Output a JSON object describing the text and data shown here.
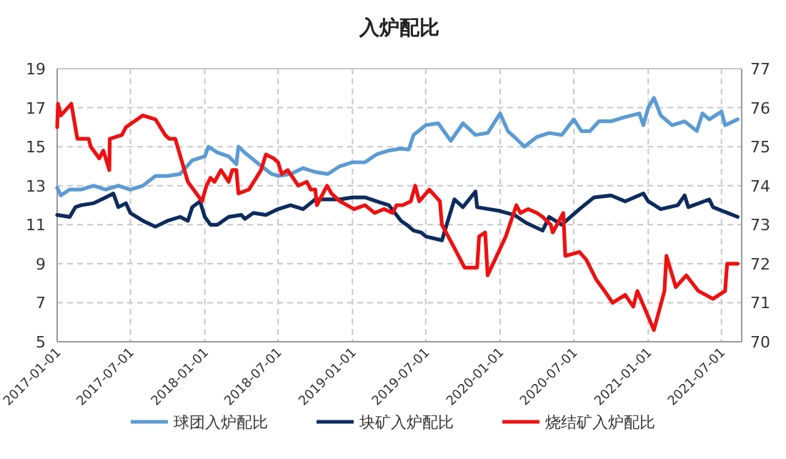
{
  "chart_data": {
    "type": "line",
    "title": "入炉配比",
    "xlim": [
      "2017-01-01",
      "2021-08-20"
    ],
    "xticks": [
      "2017-01-01",
      "2017-07-01",
      "2018-01-01",
      "2018-07-01",
      "2019-01-01",
      "2019-07-01",
      "2020-01-01",
      "2020-07-01",
      "2021-01-01",
      "2021-07-01"
    ],
    "ylim": [
      5,
      19
    ],
    "yticks": [
      5,
      7,
      9,
      11,
      13,
      15,
      17,
      19
    ],
    "y2lim": [
      70,
      77
    ],
    "y2ticks": [
      70,
      71,
      72,
      73,
      74,
      75,
      76,
      77
    ],
    "grid": true,
    "legend": "bottom",
    "line_style": "solid",
    "marker": "none",
    "series": [
      {
        "name": "球团入炉配比",
        "color": "#5b9bd5",
        "x": [
          "2017-01-01",
          "2017-01-10",
          "2017-02-01",
          "2017-03-01",
          "2017-04-01",
          "2017-05-01",
          "2017-06-01",
          "2017-07-01",
          "2017-08-01",
          "2017-09-01",
          "2017-10-01",
          "2017-11-01",
          "2017-12-01",
          "2018-01-01",
          "2018-01-10",
          "2018-02-01",
          "2018-03-01",
          "2018-03-20",
          "2018-03-25",
          "2018-04-15",
          "2018-05-15",
          "2018-06-15",
          "2018-07-01",
          "2018-08-01",
          "2018-09-01",
          "2018-10-01",
          "2018-11-01",
          "2018-12-01",
          "2019-01-01",
          "2019-02-01",
          "2019-03-01",
          "2019-04-01",
          "2019-05-01",
          "2019-05-20",
          "2019-06-01",
          "2019-07-01",
          "2019-08-01",
          "2019-09-01",
          "2019-10-01",
          "2019-11-01",
          "2019-12-01",
          "2020-01-01",
          "2020-01-20",
          "2020-02-05",
          "2020-03-01",
          "2020-04-01",
          "2020-05-01",
          "2020-06-01",
          "2020-07-01",
          "2020-07-20",
          "2020-08-10",
          "2020-09-01",
          "2020-10-01",
          "2020-11-01",
          "2020-12-10",
          "2020-12-20",
          "2021-01-01",
          "2021-01-15",
          "2021-02-01",
          "2021-03-01",
          "2021-04-01",
          "2021-05-01",
          "2021-05-15",
          "2021-06-01",
          "2021-07-01",
          "2021-07-10",
          "2021-08-10"
        ],
        "values": [
          12.9,
          12.5,
          12.8,
          12.8,
          13.0,
          12.8,
          13.0,
          12.8,
          13.0,
          13.5,
          13.5,
          13.6,
          14.3,
          14.5,
          15.0,
          14.7,
          14.5,
          14.1,
          15.0,
          14.6,
          14.1,
          13.6,
          13.5,
          13.6,
          13.9,
          13.7,
          13.6,
          14.0,
          14.2,
          14.2,
          14.6,
          14.8,
          14.9,
          14.85,
          15.6,
          16.1,
          16.2,
          15.3,
          16.2,
          15.6,
          15.7,
          16.7,
          15.8,
          15.5,
          15.0,
          15.5,
          15.7,
          15.6,
          16.4,
          15.8,
          15.8,
          16.3,
          16.3,
          16.5,
          16.7,
          16.1,
          17.0,
          17.5,
          16.6,
          16.1,
          16.3,
          15.8,
          16.7,
          16.4,
          16.8,
          16.1,
          16.4
        ]
      },
      {
        "name": "块矿入炉配比",
        "color": "#0d2b5e",
        "x": [
          "2017-01-01",
          "2017-02-01",
          "2017-02-15",
          "2017-03-01",
          "2017-04-01",
          "2017-05-01",
          "2017-05-20",
          "2017-06-01",
          "2017-06-20",
          "2017-07-01",
          "2017-08-01",
          "2017-09-01",
          "2017-10-01",
          "2017-11-01",
          "2017-11-20",
          "2017-12-01",
          "2017-12-20",
          "2018-01-01",
          "2018-01-15",
          "2018-02-01",
          "2018-03-01",
          "2018-04-01",
          "2018-04-10",
          "2018-05-01",
          "2018-06-01",
          "2018-07-01",
          "2018-08-01",
          "2018-09-01",
          "2018-10-01",
          "2018-11-01",
          "2018-12-01",
          "2019-01-01",
          "2019-02-01",
          "2019-03-01",
          "2019-04-01",
          "2019-05-01",
          "2019-05-15",
          "2019-06-01",
          "2019-06-20",
          "2019-07-01",
          "2019-08-10",
          "2019-09-10",
          "2019-10-01",
          "2019-11-01",
          "2019-11-05",
          "2020-01-01",
          "2020-02-05",
          "2020-03-05",
          "2020-04-15",
          "2020-05-01",
          "2020-06-01",
          "2020-07-15",
          "2020-08-20",
          "2020-10-01",
          "2020-11-05",
          "2020-12-20",
          "2021-01-01",
          "2021-02-01",
          "2021-03-15",
          "2021-04-01",
          "2021-04-10",
          "2021-06-01",
          "2021-06-10",
          "2021-08-10"
        ],
        "values": [
          11.5,
          11.4,
          11.9,
          12.0,
          12.1,
          12.4,
          12.6,
          11.9,
          12.1,
          11.6,
          11.2,
          10.9,
          11.2,
          11.4,
          11.2,
          11.9,
          12.2,
          11.4,
          11.0,
          11.0,
          11.4,
          11.5,
          11.3,
          11.6,
          11.5,
          11.8,
          12.0,
          11.8,
          12.3,
          12.3,
          12.3,
          12.4,
          12.4,
          12.2,
          12.0,
          11.2,
          11.0,
          10.7,
          10.6,
          10.4,
          10.2,
          12.3,
          11.9,
          12.7,
          11.9,
          11.7,
          11.5,
          11.1,
          10.7,
          11.4,
          11.0,
          11.8,
          12.4,
          12.5,
          12.2,
          12.6,
          12.2,
          11.8,
          12.0,
          12.5,
          11.9,
          12.3,
          11.9,
          11.4
        ]
      },
      {
        "name": "烧结矿入炉配比",
        "color": "#ee1111",
        "axis": "y2",
        "x": [
          "2017-01-01",
          "2017-01-03",
          "2017-01-10",
          "2017-02-05",
          "2017-02-20",
          "2017-03-20",
          "2017-03-25",
          "2017-04-15",
          "2017-04-25",
          "2017-05-10",
          "2017-05-11",
          "2017-06-10",
          "2017-06-20",
          "2017-08-01",
          "2017-09-01",
          "2017-09-25",
          "2017-10-05",
          "2017-10-20",
          "2017-11-20",
          "2017-12-25",
          "2018-01-05",
          "2018-01-15",
          "2018-01-25",
          "2018-02-10",
          "2018-03-01",
          "2018-03-10",
          "2018-03-20",
          "2018-03-25",
          "2018-04-20",
          "2018-05-20",
          "2018-06-01",
          "2018-06-20",
          "2018-07-01",
          "2018-07-10",
          "2018-07-25",
          "2018-08-20",
          "2018-09-10",
          "2018-09-20",
          "2018-10-01",
          "2018-10-05",
          "2018-10-30",
          "2018-11-10",
          "2018-12-01",
          "2019-01-05",
          "2019-02-01",
          "2019-02-25",
          "2019-03-20",
          "2019-04-10",
          "2019-04-20",
          "2019-05-05",
          "2019-05-25",
          "2019-06-05",
          "2019-06-15",
          "2019-07-10",
          "2019-08-05",
          "2019-08-10",
          "2019-09-10",
          "2019-10-05",
          "2019-11-05",
          "2019-11-10",
          "2019-11-25",
          "2019-12-01",
          "2020-01-15",
          "2020-02-10",
          "2020-02-20",
          "2020-03-10",
          "2020-04-01",
          "2020-04-15",
          "2020-05-05",
          "2020-05-10",
          "2020-06-05",
          "2020-06-10",
          "2020-07-15",
          "2020-08-01",
          "2020-08-25",
          "2020-09-15",
          "2020-10-05",
          "2020-11-05",
          "2020-11-25",
          "2020-12-05",
          "2021-01-15",
          "2021-02-10",
          "2021-02-15",
          "2021-03-10",
          "2021-04-05",
          "2021-05-05",
          "2021-06-10",
          "2021-07-10",
          "2021-07-15",
          "2021-08-10"
        ],
        "values": [
          75.5,
          76.1,
          75.8,
          76.1,
          75.2,
          75.2,
          75.0,
          74.7,
          74.9,
          74.4,
          75.2,
          75.3,
          75.5,
          75.8,
          75.7,
          75.3,
          75.2,
          75.2,
          74.1,
          73.6,
          74.0,
          74.2,
          74.1,
          74.4,
          74.1,
          74.4,
          74.4,
          73.8,
          73.9,
          74.4,
          74.8,
          74.7,
          74.6,
          74.3,
          74.4,
          74.0,
          74.1,
          73.9,
          73.9,
          73.5,
          74.0,
          73.8,
          73.6,
          73.4,
          73.5,
          73.3,
          73.4,
          73.3,
          73.5,
          73.5,
          73.6,
          74.0,
          73.6,
          73.9,
          73.6,
          73.0,
          72.4,
          71.9,
          71.9,
          72.7,
          72.8,
          71.7,
          72.7,
          73.5,
          73.3,
          73.4,
          73.3,
          73.2,
          73.0,
          72.8,
          73.3,
          72.2,
          72.3,
          72.1,
          71.6,
          71.3,
          71.0,
          71.2,
          70.9,
          71.3,
          70.3,
          71.3,
          72.2,
          71.4,
          71.7,
          71.3,
          71.1,
          71.3,
          72.0,
          72.0
        ]
      }
    ]
  }
}
